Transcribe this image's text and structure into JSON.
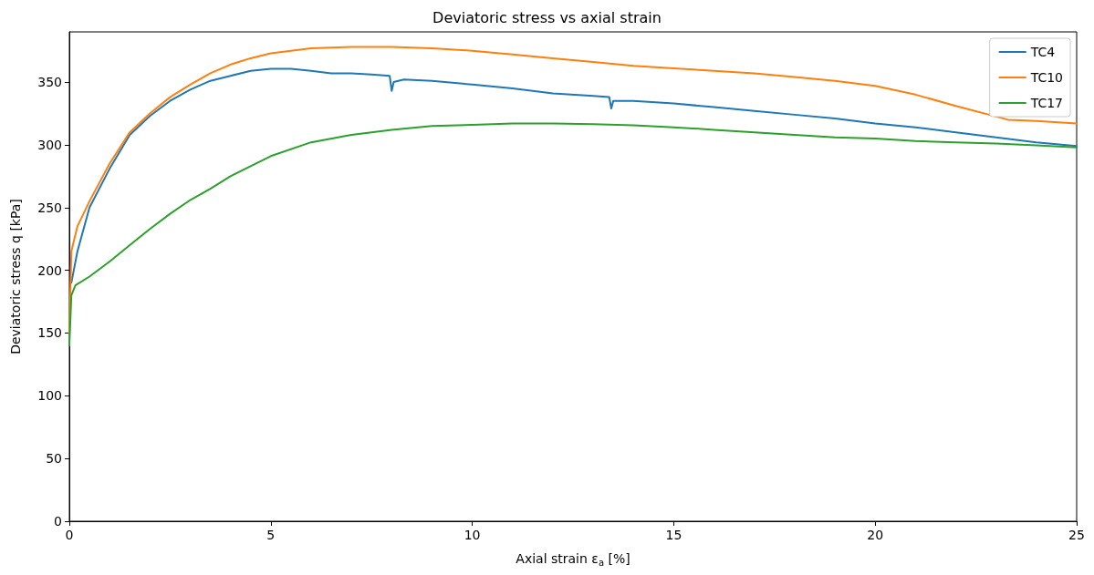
{
  "chart_data": {
    "type": "line",
    "title": "Deviatoric stress vs axial strain",
    "xlabel": "Axial strain ε$_{a}$ [%]",
    "ylabel": "Deviatoric stress q [kPa]",
    "xlim": [
      0,
      25
    ],
    "xticks": [
      0,
      5,
      10,
      15,
      20,
      25
    ],
    "ylim": [
      0,
      390
    ],
    "yticks": [
      0,
      50,
      100,
      150,
      200,
      250,
      300,
      350
    ],
    "grid": false,
    "legend": "top right",
    "marker": "none",
    "line_style": "solid",
    "series": [
      {
        "name": "TC4",
        "color": "#1f77b4",
        "x": [
          0.05,
          0.2,
          0.5,
          1,
          1.5,
          2,
          2.5,
          3,
          3.5,
          4,
          4.5,
          5,
          5.5,
          6,
          6.5,
          7,
          7.5,
          7.95,
          8.0,
          8.05,
          8.3,
          9,
          10,
          11,
          12,
          13,
          13.4,
          13.45,
          13.5,
          14,
          15,
          16,
          17,
          18,
          19,
          20,
          21,
          22,
          23,
          24,
          25
        ],
        "values": [
          190,
          215,
          250,
          281,
          308,
          323,
          335,
          344,
          351,
          355,
          359,
          360.5,
          360.5,
          359,
          357,
          357,
          356,
          355,
          343,
          350,
          352,
          351,
          348,
          345,
          341,
          339,
          338,
          329,
          335,
          335,
          333,
          330,
          327,
          324,
          321,
          317,
          314,
          310,
          306,
          302,
          299
        ]
      },
      {
        "name": "TC10",
        "color": "#ff7f0e",
        "x": [
          0,
          0.05,
          0.2,
          0.5,
          1,
          1.5,
          2,
          2.5,
          3,
          3.5,
          4,
          4.5,
          5,
          6,
          7,
          8,
          9,
          10,
          11,
          12,
          13,
          14,
          15,
          16,
          17,
          18,
          19,
          20,
          21,
          22,
          23.3,
          24,
          25
        ],
        "values": [
          150,
          215,
          235,
          255,
          285,
          310,
          325,
          338,
          348,
          357,
          364,
          369,
          373,
          377,
          378,
          378,
          377,
          375,
          372,
          369,
          366,
          363,
          361,
          359,
          357,
          354,
          351,
          347,
          340,
          331,
          320,
          319,
          317
        ]
      },
      {
        "name": "TC17",
        "color": "#2ca02c",
        "x": [
          0,
          0.05,
          0.15,
          0.5,
          1,
          1.5,
          2,
          2.5,
          3,
          3.5,
          4,
          5,
          6,
          7,
          8,
          9,
          10,
          11,
          12,
          13,
          14,
          15,
          16,
          17,
          18,
          19,
          20,
          21,
          22,
          23,
          24,
          25
        ],
        "values": [
          140,
          180,
          188,
          195,
          207,
          220,
          233,
          245,
          256,
          265,
          275,
          291,
          302,
          308,
          312,
          315,
          316,
          317,
          317,
          316.5,
          315.5,
          314,
          312,
          310,
          308,
          306,
          305,
          303,
          302,
          301,
          299.5,
          298
        ]
      }
    ]
  }
}
